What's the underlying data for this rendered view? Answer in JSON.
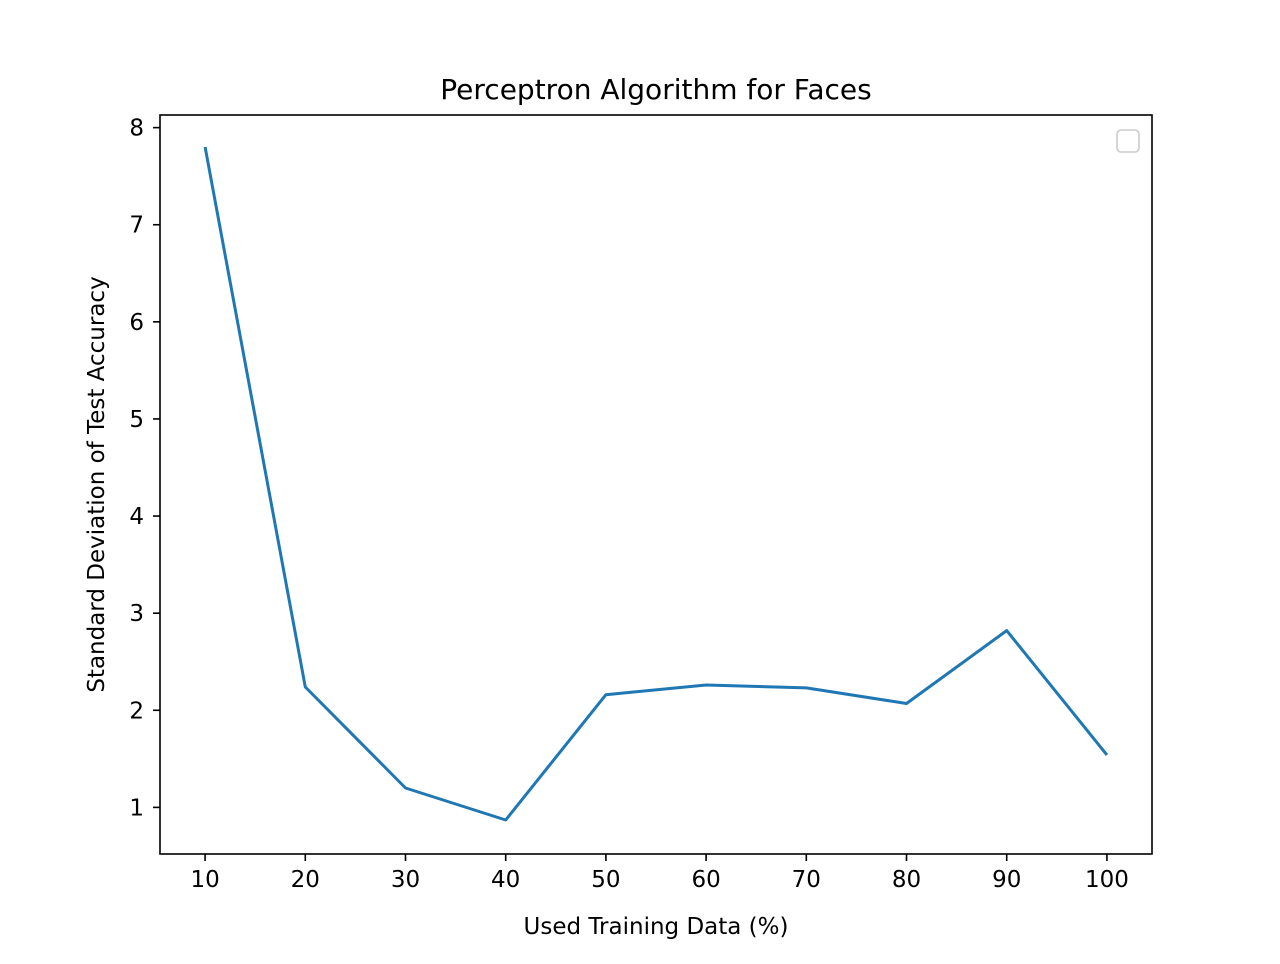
{
  "chart_data": {
    "type": "line",
    "title": "Perceptron Algorithm for Faces",
    "xlabel": "Used Training Data (%)",
    "ylabel": "Standard Deviation of Test Accuracy",
    "xlim": [
      5.5,
      104.5
    ],
    "ylim": [
      0.52,
      8.13
    ],
    "xticks": [
      10,
      20,
      30,
      40,
      50,
      60,
      70,
      80,
      90,
      100
    ],
    "yticks": [
      1,
      2,
      3,
      4,
      5,
      6,
      7,
      8
    ],
    "grid": false,
    "legend": {
      "placement": "top-right",
      "entries": []
    },
    "series": [
      {
        "color": "#1f77b4",
        "x": [
          10,
          20,
          30,
          40,
          50,
          60,
          70,
          80,
          90,
          100
        ],
        "y": [
          7.8,
          2.24,
          1.2,
          0.87,
          2.16,
          2.26,
          2.23,
          2.07,
          2.82,
          1.54
        ]
      }
    ]
  }
}
